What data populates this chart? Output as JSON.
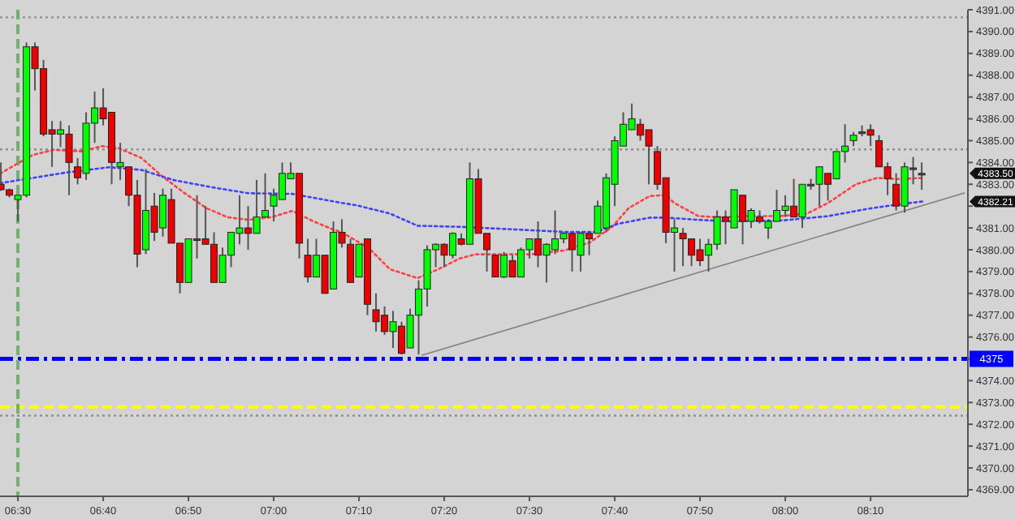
{
  "chart_data": {
    "type": "candlestick",
    "x": [
      6.4667,
      6.4833,
      6.5,
      6.5167,
      6.5333,
      6.55,
      6.5667,
      6.5833,
      6.6,
      6.6167,
      6.6333,
      6.65,
      6.6667,
      6.6833,
      6.7,
      6.7167,
      6.7333,
      6.75,
      6.7667,
      6.7833,
      6.8,
      6.8167,
      6.8333,
      6.85,
      6.8667,
      6.8833,
      6.9,
      6.9167,
      6.9333,
      6.95,
      6.9667,
      6.9833,
      7.0,
      7.0167,
      7.0333,
      7.05,
      7.0667,
      7.0833,
      7.1,
      7.1167,
      7.1333,
      7.15,
      7.1667,
      7.1833,
      7.2,
      7.2167,
      7.2333,
      7.25,
      7.2667,
      7.2833,
      7.3,
      7.3167,
      7.3333,
      7.35,
      7.3667,
      7.3833,
      7.4,
      7.4167,
      7.4333,
      7.45,
      7.4667,
      7.4833,
      7.5,
      7.5167,
      7.5333,
      7.55,
      7.5667,
      7.5833,
      7.6,
      7.6167,
      7.6333,
      7.65,
      7.6667,
      7.6833,
      7.7,
      7.7167,
      7.7333,
      7.75,
      7.7667,
      7.7833,
      7.8,
      7.8167,
      7.8333,
      7.85,
      7.8667,
      7.8833,
      7.9,
      7.9167,
      7.9333,
      7.95,
      7.9667,
      7.9833,
      8.0,
      8.0167,
      8.0333,
      8.05,
      8.0667,
      8.0833,
      8.1,
      8.1167,
      8.1333,
      8.15,
      8.1667,
      8.1833,
      8.2,
      8.2167,
      8.2333,
      8.25,
      8.2667
    ],
    "ohlc": [
      [
        4383.0,
        4384.0,
        4382.7,
        4382.75
      ],
      [
        4382.75,
        4382.8,
        4382.4,
        4382.5
      ],
      [
        4382.3,
        4382.5,
        4381.3,
        4382.5
      ],
      [
        4382.5,
        4389.5,
        4382.4,
        4389.3
      ],
      [
        4389.3,
        4389.5,
        4387.3,
        4388.3
      ],
      [
        4388.3,
        4388.7,
        4385.2,
        4385.3
      ],
      [
        4385.5,
        4385.9,
        4383.8,
        4385.3
      ],
      [
        4385.3,
        4385.9,
        4384.7,
        4385.5
      ],
      [
        4385.3,
        4385.7,
        4382.5,
        4384.0
      ],
      [
        4383.8,
        4384.2,
        4383.0,
        4383.3
      ],
      [
        4383.5,
        4386.3,
        4383.2,
        4385.8
      ],
      [
        4385.8,
        4387.25,
        4384.9,
        4386.5
      ],
      [
        4386.5,
        4387.4,
        4385.7,
        4386.0
      ],
      [
        4386.3,
        4386.3,
        4383.0,
        4384.0
      ],
      [
        4383.8,
        4384.9,
        4383.2,
        4384.0
      ],
      [
        4383.8,
        4383.8,
        4382.0,
        4382.5
      ],
      [
        4382.5,
        4383.2,
        4379.2,
        4379.8
      ],
      [
        4380.0,
        4383.7,
        4379.8,
        4381.8
      ],
      [
        4382.0,
        4382.6,
        4380.4,
        4380.8
      ],
      [
        4381.0,
        4382.8,
        4380.6,
        4382.5
      ],
      [
        4382.3,
        4382.8,
        4380.3,
        4380.3
      ],
      [
        4380.3,
        4380.3,
        4378.0,
        4378.5
      ],
      [
        4378.5,
        4380.5,
        4378.5,
        4380.5
      ],
      [
        4380.5,
        4382.5,
        4379.6,
        4380.5
      ],
      [
        4380.5,
        4382.0,
        4380.25,
        4380.25
      ],
      [
        4380.25,
        4380.8,
        4378.5,
        4378.5
      ],
      [
        4378.5,
        4380.1,
        4378.5,
        4379.75
      ],
      [
        4379.75,
        4380.8,
        4379.2,
        4380.8
      ],
      [
        4380.75,
        4382.5,
        4380.25,
        4381.0
      ],
      [
        4381.0,
        4382.0,
        4380.0,
        4380.75
      ],
      [
        4380.75,
        4383.2,
        4380.75,
        4381.5
      ],
      [
        4381.5,
        4383.5,
        4381.5,
        4381.8
      ],
      [
        4382.0,
        4382.8,
        4381.3,
        4382.5
      ],
      [
        4382.3,
        4384.0,
        4382.3,
        4383.5
      ],
      [
        4383.25,
        4384.0,
        4383.25,
        4383.5
      ],
      [
        4383.5,
        4383.5,
        4379.6,
        4380.3
      ],
      [
        4379.75,
        4380.5,
        4378.5,
        4378.75
      ],
      [
        4378.75,
        4380.5,
        4378.75,
        4379.75
      ],
      [
        4379.75,
        4379.75,
        4378.0,
        4378.0
      ],
      [
        4378.2,
        4381.3,
        4378.2,
        4380.8
      ],
      [
        4380.8,
        4381.4,
        4380.1,
        4380.3
      ],
      [
        4380.25,
        4380.5,
        4378.5,
        4378.5
      ],
      [
        4378.75,
        4380.25,
        4378.75,
        4380.25
      ],
      [
        4380.5,
        4380.5,
        4377.0,
        4377.5
      ],
      [
        4377.25,
        4378.0,
        4376.25,
        4376.7
      ],
      [
        4377.0,
        4377.4,
        4376.1,
        4376.25
      ],
      [
        4376.25,
        4377.2,
        4375.5,
        4376.7
      ],
      [
        4376.5,
        4376.7,
        4375.2,
        4375.25
      ],
      [
        4375.5,
        4377.3,
        4375.5,
        4377.0
      ],
      [
        4377.0,
        4378.6,
        4375.2,
        4378.2
      ],
      [
        4378.2,
        4380.2,
        4377.4,
        4380.0
      ],
      [
        4380.0,
        4380.3,
        4379.2,
        4380.25
      ],
      [
        4380.25,
        4380.3,
        4379.2,
        4379.75
      ],
      [
        4379.75,
        4380.8,
        4379.6,
        4380.75
      ],
      [
        4380.5,
        4380.75,
        4380.2,
        4380.25
      ],
      [
        4380.25,
        4384.0,
        4380.25,
        4383.25
      ],
      [
        4383.25,
        4383.7,
        4380.75,
        4380.75
      ],
      [
        4380.75,
        4380.75,
        4379.0,
        4380.0
      ],
      [
        4379.75,
        4379.75,
        4378.75,
        4378.75
      ],
      [
        4378.75,
        4379.9,
        4378.7,
        4379.75
      ],
      [
        4379.5,
        4379.75,
        4378.75,
        4378.75
      ],
      [
        4378.75,
        4380.1,
        4378.75,
        4380.0
      ],
      [
        4380.0,
        4380.5,
        4379.6,
        4380.5
      ],
      [
        4380.5,
        4381.3,
        4379.2,
        4379.75
      ],
      [
        4379.75,
        4380.3,
        4378.5,
        4380.25
      ],
      [
        4380.0,
        4381.8,
        4379.8,
        4380.5
      ],
      [
        4380.5,
        4380.8,
        4380.3,
        4380.75
      ],
      [
        4380.75,
        4380.8,
        4379.0,
        4380.0
      ],
      [
        4379.75,
        4380.8,
        4379.0,
        4380.75
      ],
      [
        4380.75,
        4380.8,
        4379.75,
        4380.5
      ],
      [
        4380.75,
        4382.25,
        4380.75,
        4382.0
      ],
      [
        4381.0,
        4383.5,
        4380.8,
        4383.3
      ],
      [
        4383.0,
        4385.2,
        4382.0,
        4385.0
      ],
      [
        4384.75,
        4386.3,
        4384.75,
        4385.75
      ],
      [
        4385.5,
        4386.7,
        4385.5,
        4386.0
      ],
      [
        4385.75,
        4386.0,
        4385.0,
        4385.25
      ],
      [
        4385.5,
        4385.5,
        4383.0,
        4384.75
      ],
      [
        4384.5,
        4384.75,
        4382.75,
        4383.0
      ],
      [
        4383.3,
        4383.3,
        4380.3,
        4380.8
      ],
      [
        4380.8,
        4381.4,
        4379.0,
        4381.0
      ],
      [
        4380.75,
        4381.0,
        4379.25,
        4380.5
      ],
      [
        4380.5,
        4380.5,
        4379.25,
        4379.75
      ],
      [
        4380.0,
        4380.5,
        4379.25,
        4379.5
      ],
      [
        4379.75,
        4380.5,
        4379.0,
        4380.25
      ],
      [
        4380.25,
        4381.8,
        4380.0,
        4381.5
      ],
      [
        4381.5,
        4381.8,
        4380.25,
        4381.3
      ],
      [
        4381.0,
        4382.75,
        4381.0,
        4382.75
      ],
      [
        4382.5,
        4382.5,
        4380.25,
        4381.3
      ],
      [
        4381.3,
        4381.9,
        4381.0,
        4381.8
      ],
      [
        4381.5,
        4381.8,
        4381.2,
        4381.3
      ],
      [
        4381.0,
        4381.4,
        4380.5,
        4381.3
      ],
      [
        4381.3,
        4382.75,
        4381.3,
        4381.8
      ],
      [
        4381.8,
        4382.5,
        4381.5,
        4382.0
      ],
      [
        4382.0,
        4383.25,
        4381.5,
        4381.5
      ],
      [
        4381.5,
        4383.0,
        4381.0,
        4383.0
      ],
      [
        4383.0,
        4383.25,
        4382.75,
        4383.0
      ],
      [
        4383.0,
        4383.8,
        4382.0,
        4383.8
      ],
      [
        4383.5,
        4383.5,
        4382.25,
        4383.0
      ],
      [
        4383.25,
        4384.5,
        4383.25,
        4384.5
      ],
      [
        4384.5,
        4385.75,
        4384.0,
        4384.75
      ],
      [
        4385.0,
        4385.4,
        4384.75,
        4385.25
      ],
      [
        4385.4,
        4385.7,
        4385.2,
        4385.4
      ],
      [
        4385.5,
        4385.75,
        4384.75,
        4385.25
      ],
      [
        4385.0,
        4385.25,
        4383.8,
        4383.8
      ],
      [
        4383.8,
        4384.0,
        4382.5,
        4383.25
      ],
      [
        4383.0,
        4383.5,
        4381.8,
        4382.0
      ],
      [
        4382.0,
        4384.0,
        4381.7,
        4383.8
      ],
      [
        4383.75,
        4384.25,
        4383.0,
        4383.75
      ],
      [
        4383.5,
        4384.0,
        4382.75,
        4383.5
      ]
    ],
    "series": [
      {
        "type": "line",
        "color": "#ff4040",
        "line_style": "dotted",
        "x": [
          6.465,
          6.5286,
          6.5698,
          6.6238,
          6.665,
          6.6968,
          6.7413,
          6.7825,
          6.8238,
          6.8683,
          6.9095,
          6.9508,
          6.9952,
          7.0365,
          7.0778,
          7.1159,
          7.1317,
          7.1857,
          7.227,
          7.281,
          7.3222,
          7.3635,
          7.3952,
          7.4397,
          7.5032,
          7.5667,
          7.6175,
          7.6619,
          7.6937,
          7.735,
          7.7667,
          7.7825,
          7.8302,
          7.8714,
          7.9254,
          7.9889,
          8.0429,
          8.0841,
          8.1381,
          8.1794,
          8.2206,
          8.2683
        ],
        "values": [
          4383.49,
          4384.34,
          4384.58,
          4384.51,
          4384.75,
          4384.65,
          4384.21,
          4383.36,
          4382.63,
          4381.91,
          4381.49,
          4381.37,
          4381.49,
          4381.78,
          4381.3,
          4380.93,
          4380.81,
          4380.08,
          4379.11,
          4378.7,
          4379.11,
          4379.6,
          4379.79,
          4379.79,
          4379.79,
          4379.96,
          4380.33,
          4381.05,
          4381.91,
          4382.46,
          4382.51,
          4382.15,
          4381.54,
          4381.49,
          4381.54,
          4381.54,
          4381.66,
          4382.15,
          4383.0,
          4383.29,
          4383.24,
          4383.29
        ]
      },
      {
        "type": "line",
        "color": "#4040ff",
        "line_style": "dotted",
        "x": [
          6.465,
          6.5286,
          6.592,
          6.6778,
          6.7413,
          6.8048,
          6.8873,
          6.9508,
          7.0365,
          7.1317,
          7.1635,
          7.227,
          7.281,
          7.3635,
          7.4714,
          7.5762,
          7.6302,
          7.6714,
          7.735,
          7.7667,
          7.8302,
          7.8937,
          7.9984,
          8.0841,
          8.1571,
          8.2206,
          8.2683
        ],
        "values": [
          4383.05,
          4383.29,
          4383.53,
          4383.78,
          4383.66,
          4383.19,
          4382.83,
          4382.59,
          4382.56,
          4382.15,
          4382.03,
          4381.66,
          4381.1,
          4381.05,
          4380.93,
          4380.81,
          4380.81,
          4381.18,
          4381.47,
          4381.47,
          4381.37,
          4381.3,
          4381.35,
          4381.54,
          4381.86,
          4382.08,
          4382.21
        ]
      },
      {
        "type": "line",
        "color": "#808080",
        "line_style": "solid",
        "x": [
          7.29,
          8.35
        ],
        "values": [
          4375.17,
          4382.6
        ]
      }
    ],
    "xlim": [
      6.465,
      8.357
    ],
    "xticks": [
      {
        "value": 6.5,
        "label": "06:30"
      },
      {
        "value": 6.6667,
        "label": "06:40"
      },
      {
        "value": 6.8333,
        "label": "06:50"
      },
      {
        "value": 7.0,
        "label": "07:00"
      },
      {
        "value": 7.1667,
        "label": "07:10"
      },
      {
        "value": 7.3333,
        "label": "07:20"
      },
      {
        "value": 7.5,
        "label": "07:30"
      },
      {
        "value": 7.6667,
        "label": "07:40"
      },
      {
        "value": 7.8333,
        "label": "07:50"
      },
      {
        "value": 8.0,
        "label": "08:00"
      },
      {
        "value": 8.1667,
        "label": "08:10"
      }
    ],
    "ylim": [
      4368.7,
      4391.0
    ],
    "yticks": [
      {
        "value": 4369,
        "label": "4369.00"
      },
      {
        "value": 4370,
        "label": "4370.00"
      },
      {
        "value": 4371,
        "label": "4371.00"
      },
      {
        "value": 4372,
        "label": "4372.00"
      },
      {
        "value": 4373,
        "label": "4373.00"
      },
      {
        "value": 4374,
        "label": "4374.00"
      },
      {
        "value": 4375,
        "label": null
      },
      {
        "value": 4376,
        "label": "4376.00"
      },
      {
        "value": 4377,
        "label": "4377.00"
      },
      {
        "value": 4378,
        "label": "4378.00"
      },
      {
        "value": 4379,
        "label": "4379.00"
      },
      {
        "value": 4380,
        "label": "4380.00"
      },
      {
        "value": 4381,
        "label": "4381.00"
      },
      {
        "value": 4382,
        "label": null
      },
      {
        "value": 4383,
        "label": "4383.00"
      },
      {
        "value": 4384,
        "label": "4384.00"
      },
      {
        "value": 4385,
        "label": "4385.00"
      },
      {
        "value": 4386,
        "label": "4386.00"
      },
      {
        "value": 4387,
        "label": "4387.00"
      },
      {
        "value": 4388,
        "label": "4388.00"
      },
      {
        "value": 4389,
        "label": "4389.00"
      },
      {
        "value": 4390,
        "label": "4390.00"
      },
      {
        "value": 4391,
        "label": "4391.00"
      }
    ],
    "ref_lines": [
      {
        "axis": "y",
        "value": 4375,
        "label": "4375",
        "color": "#0000ff",
        "line_style": "dashdot"
      },
      {
        "axis": "y",
        "value": 4372.8,
        "color": "#ffff00",
        "line_style": "dashed"
      },
      {
        "axis": "y",
        "value": 4390.65,
        "color": "#909090",
        "line_style": "dotted"
      },
      {
        "axis": "y",
        "value": 4384.6,
        "color": "#909090",
        "line_style": "dotted"
      },
      {
        "axis": "y",
        "value": 4372.4,
        "color": "#909090",
        "line_style": "dotted"
      },
      {
        "axis": "x",
        "value": 6.5,
        "color": "#70b070",
        "line_style": "dashed"
      }
    ],
    "annotations": [
      "4383.50",
      "4382.21"
    ],
    "grid": false
  }
}
